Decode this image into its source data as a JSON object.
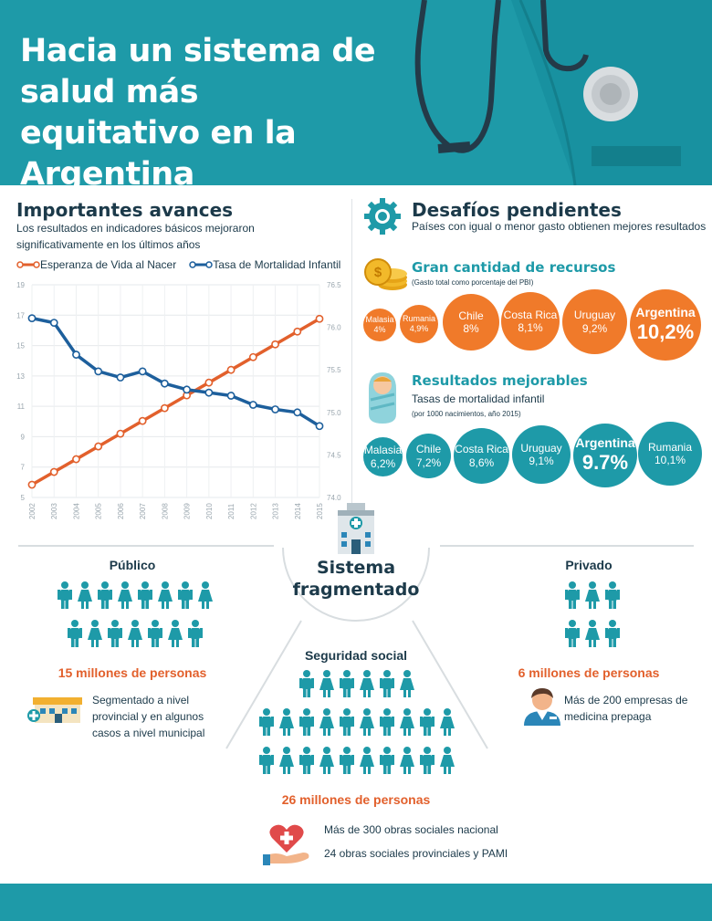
{
  "header": {
    "title": "Hacia un sistema de salud más equitativo en la Argentina"
  },
  "avances": {
    "title": "Importantes avances",
    "subtitle": "Los resultados en indicadores básicos mejoraron significativamente en los últimos años"
  },
  "chart_data": {
    "type": "line",
    "x": [
      "2002",
      "2003",
      "2004",
      "2005",
      "2006",
      "2007",
      "2008",
      "2009",
      "2010",
      "2011",
      "2012",
      "2013",
      "2014",
      "2015"
    ],
    "series": [
      {
        "name": "Esperanza de Vida al Nacer",
        "color": "#e2602c",
        "axis": "right",
        "values": [
          74.15,
          74.3,
          74.45,
          74.6,
          74.75,
          74.9,
          75.05,
          75.2,
          75.35,
          75.5,
          75.65,
          75.8,
          75.95,
          76.1
        ]
      },
      {
        "name": "Tasa de Mortalidad Infantil",
        "color": "#1d5f9c",
        "axis": "left",
        "values": [
          16.8,
          16.5,
          14.4,
          13.3,
          12.9,
          13.3,
          12.5,
          12.1,
          11.9,
          11.7,
          11.1,
          10.8,
          10.6,
          9.7
        ]
      }
    ],
    "y_left": {
      "ticks": [
        5,
        7,
        9,
        11,
        13,
        15,
        17,
        19
      ],
      "range": [
        5,
        19
      ]
    },
    "y_right": {
      "ticks": [
        "74.0",
        "74.5",
        "75.0",
        "75.5",
        "76.0",
        "76.5"
      ],
      "range": [
        74.0,
        76.5
      ]
    },
    "grid": true,
    "legend_position": "top"
  },
  "desafios": {
    "title": "Desafíos pendientes",
    "subtitle": "Países con igual o menor gasto obtienen mejores resultados"
  },
  "recursos": {
    "title": "Gran cantidad de recursos",
    "note": "(Gasto total como porcentaje del PBI)",
    "countries": [
      {
        "name": "Malasia",
        "value": "4%"
      },
      {
        "name": "Rumania",
        "value": "4,9%"
      },
      {
        "name": "Chile",
        "value": "8%"
      },
      {
        "name": "Costa Rica",
        "value": "8,1%"
      },
      {
        "name": "Uruguay",
        "value": "9,2%"
      },
      {
        "name": "Argentina",
        "value": "10,2%"
      }
    ]
  },
  "resultados": {
    "title": "Resultados mejorables",
    "subtitle": "Tasas de mortalidad infantil",
    "note": "(por 1000 nacimientos, año 2015)",
    "countries": [
      {
        "name": "Malasia",
        "value": "6,2%"
      },
      {
        "name": "Chile",
        "value": "7,2%"
      },
      {
        "name": "Costa Rica",
        "value": "8,6%"
      },
      {
        "name": "Uruguay",
        "value": "9,1%"
      },
      {
        "name": "Argentina",
        "value": "9.7%"
      },
      {
        "name": "Rumania",
        "value": "10,1%"
      }
    ]
  },
  "sistema": {
    "center_line1": "Sistema",
    "center_line2": "fragmentado",
    "publico": {
      "title": "Público",
      "persons": "15 millones de personas",
      "desc": "Segmentado a nivel provincial y en algunos casos a nivel municipal"
    },
    "privado": {
      "title": "Privado",
      "persons": "6 millones de personas",
      "desc": "Más de 200 empresas de medicina prepaga"
    },
    "seguridad": {
      "title": "Seguridad social",
      "persons": "26 millones de personas",
      "desc1": "Más de 300 obras sociales nacional",
      "desc2": "24 obras sociales provinciales y PAMI"
    }
  },
  "colors": {
    "teal": "#1e9aa8",
    "orange": "#f07a2a",
    "navy": "#1c3a4a",
    "blue": "#1d5f9c"
  },
  "icons": [
    "stethoscope-icon",
    "gear-icon",
    "coins-icon",
    "baby-icon",
    "hospital-icon",
    "person-icon",
    "doctor-icon",
    "heart-hand-icon"
  ]
}
